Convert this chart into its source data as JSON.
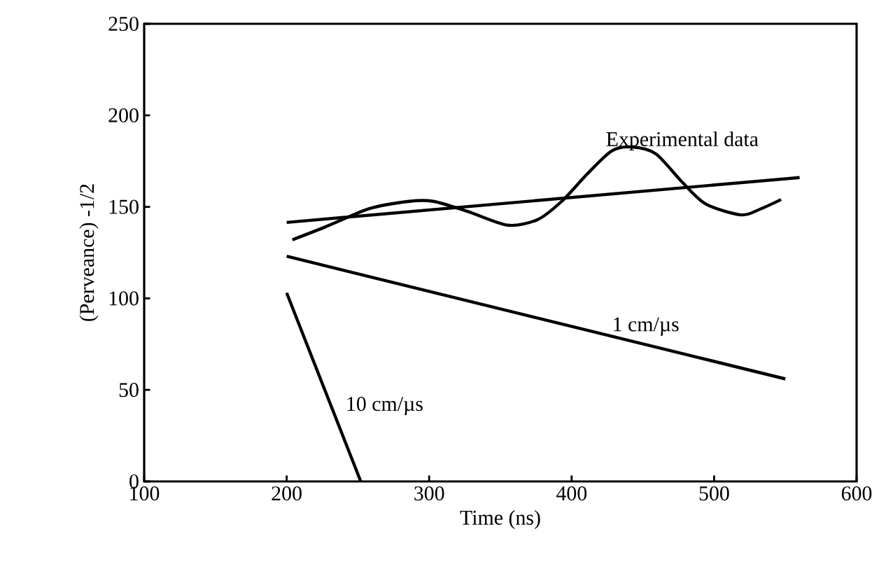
{
  "chart_data": {
    "type": "line",
    "xlabel": "Time (ns)",
    "ylabel": "(Perveance) -1/2",
    "xlim": [
      100,
      600
    ],
    "ylim": [
      0,
      250
    ],
    "xticks": [
      100,
      200,
      300,
      400,
      500,
      600
    ],
    "yticks": [
      0,
      50,
      100,
      150,
      200,
      250
    ],
    "grid": false,
    "legend": false,
    "marker": "none",
    "line_style": "solid",
    "series": [
      {
        "name": "Experimental data",
        "color": "#000000",
        "x": [
          204,
          227,
          258,
          286,
          303,
          327,
          355,
          376,
          393,
          411,
          428,
          442,
          459,
          477,
          494,
          519,
          533,
          547
        ],
        "values": [
          132,
          139,
          149,
          153,
          153,
          147.5,
          140,
          143,
          153,
          168,
          180.5,
          182.7,
          179,
          164,
          151.6,
          145.6,
          149,
          154
        ]
      },
      {
        "color": "#000000",
        "x": [
          200,
          560
        ],
        "values": [
          141.5,
          166
        ]
      },
      {
        "name": "1 cm/µs",
        "color": "#000000",
        "x": [
          200,
          550
        ],
        "values": [
          123,
          56
        ]
      },
      {
        "name": "10 cm/µs",
        "color": "#000000",
        "x": [
          200,
          252
        ],
        "values": [
          103,
          0
        ]
      }
    ]
  }
}
